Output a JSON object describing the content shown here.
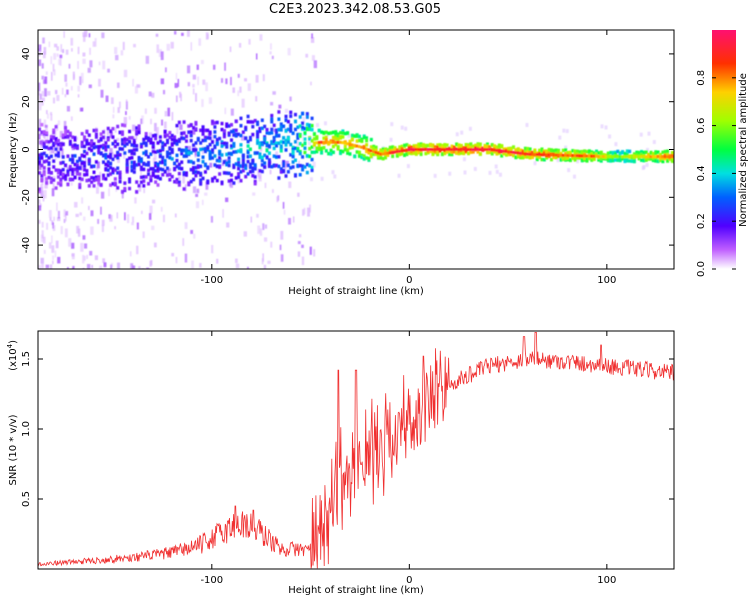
{
  "title": "C2E3.2023.342.08.53.G05",
  "colorbar": {
    "label": "Normalized spectral amplitude",
    "range": [
      0,
      1
    ],
    "ticks": [
      "0.0",
      "0.2",
      "0.4",
      "0.6",
      "0.8"
    ]
  },
  "chart_data": [
    {
      "type": "heatmap",
      "title": "",
      "xlabel": "Height of straight line (km)",
      "ylabel": "Frequency (Hz)",
      "xlim": [
        -188,
        134
      ],
      "ylim": [
        -50,
        50
      ],
      "xticks": [
        -100,
        0,
        100
      ],
      "xtick_labels": [
        "-100",
        "0",
        "100"
      ],
      "yticks": [
        -40,
        -20,
        0,
        20,
        40
      ],
      "ytick_labels": [
        "-40",
        "-20",
        "0",
        "20",
        "40"
      ],
      "ridge": [
        {
          "x": -185,
          "y": -3
        },
        {
          "x": -150,
          "y": -4
        },
        {
          "x": -120,
          "y": -3
        },
        {
          "x": -100,
          "y": -2
        },
        {
          "x": -80,
          "y": 0
        },
        {
          "x": -60,
          "y": 2
        },
        {
          "x": -45,
          "y": 3
        },
        {
          "x": -35,
          "y": 3
        },
        {
          "x": -25,
          "y": 1
        },
        {
          "x": -15,
          "y": -2
        },
        {
          "x": 0,
          "y": 0
        },
        {
          "x": 40,
          "y": 0
        },
        {
          "x": 60,
          "y": -2
        },
        {
          "x": 100,
          "y": -3
        },
        {
          "x": 134,
          "y": -3
        }
      ],
      "amplitude_profile": [
        {
          "x": -188,
          "v": 0.25
        },
        {
          "x": -120,
          "v": 0.35
        },
        {
          "x": -80,
          "v": 0.45
        },
        {
          "x": -60,
          "v": 0.5
        },
        {
          "x": -45,
          "v": 0.85
        },
        {
          "x": -30,
          "v": 0.8
        },
        {
          "x": -15,
          "v": 0.85
        },
        {
          "x": 0,
          "v": 0.95
        },
        {
          "x": 40,
          "v": 0.95
        },
        {
          "x": 90,
          "v": 0.85
        },
        {
          "x": 105,
          "v": 0.6
        },
        {
          "x": 134,
          "v": 0.9
        }
      ]
    },
    {
      "type": "line",
      "title": "",
      "xlabel": "Height of straight line (km)",
      "ylabel": "SNR (10 * v/v)",
      "multiplier_label": "(x10",
      "multiplier_exp": "4",
      "xlim": [
        -188,
        134
      ],
      "ylim": [
        0,
        1.7
      ],
      "xticks": [
        -100,
        0,
        100
      ],
      "xtick_labels": [
        "-100",
        "0",
        "100"
      ],
      "yticks": [
        0.5,
        1.0,
        1.5
      ],
      "ytick_labels": [
        "0.5",
        "1.0",
        "1.5"
      ],
      "series": [
        {
          "color": "#f03030",
          "envelope": [
            {
              "x": -188,
              "y": 0.03
            },
            {
              "x": -160,
              "y": 0.05
            },
            {
              "x": -140,
              "y": 0.07
            },
            {
              "x": -120,
              "y": 0.1
            },
            {
              "x": -105,
              "y": 0.15
            },
            {
              "x": -95,
              "y": 0.22
            },
            {
              "x": -85,
              "y": 0.28
            },
            {
              "x": -75,
              "y": 0.22
            },
            {
              "x": -65,
              "y": 0.12
            },
            {
              "x": -50,
              "y": 0.12
            },
            {
              "x": -42,
              "y": 0.35
            },
            {
              "x": -38,
              "y": 0.6
            },
            {
              "x": -32,
              "y": 0.65
            },
            {
              "x": -25,
              "y": 0.75
            },
            {
              "x": -15,
              "y": 0.9
            },
            {
              "x": -5,
              "y": 1.0
            },
            {
              "x": 5,
              "y": 1.1
            },
            {
              "x": 15,
              "y": 1.25
            },
            {
              "x": 25,
              "y": 1.35
            },
            {
              "x": 40,
              "y": 1.45
            },
            {
              "x": 60,
              "y": 1.5
            },
            {
              "x": 80,
              "y": 1.48
            },
            {
              "x": 100,
              "y": 1.45
            },
            {
              "x": 134,
              "y": 1.4
            }
          ],
          "peaks": [
            {
              "x": -88,
              "y": 0.45
            },
            {
              "x": -79,
              "y": 0.42
            },
            {
              "x": -36,
              "y": 1.42
            },
            {
              "x": -27,
              "y": 1.42
            },
            {
              "x": 7,
              "y": 1.52
            },
            {
              "x": 58,
              "y": 1.66
            },
            {
              "x": 64,
              "y": 1.69
            },
            {
              "x": 97,
              "y": 1.6
            }
          ]
        }
      ]
    }
  ]
}
